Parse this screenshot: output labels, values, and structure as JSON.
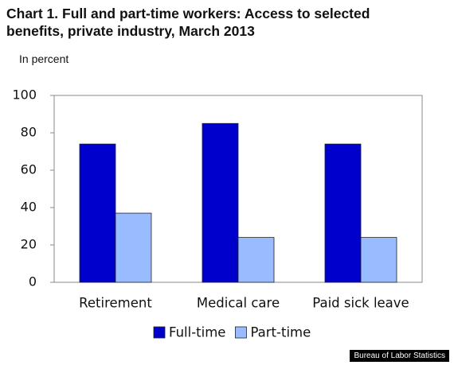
{
  "chart_data": {
    "type": "bar",
    "title": "Chart 1. Full and part-time workers: Access to selected benefits, private industry, March 2013",
    "subtitle": "In percent",
    "source": "Bureau of Labor Statistics",
    "categories": [
      "Retirement",
      "Medical care",
      "Paid sick leave"
    ],
    "series": [
      {
        "name": "Full-time",
        "color": "#0000cc",
        "values": [
          74,
          85,
          74
        ]
      },
      {
        "name": "Part-time",
        "color": "#99bbff",
        "values": [
          37,
          24,
          24
        ]
      }
    ],
    "ylim": [
      0,
      100
    ],
    "yticks": [
      0,
      20,
      40,
      60,
      80,
      100
    ],
    "grid": false
  }
}
